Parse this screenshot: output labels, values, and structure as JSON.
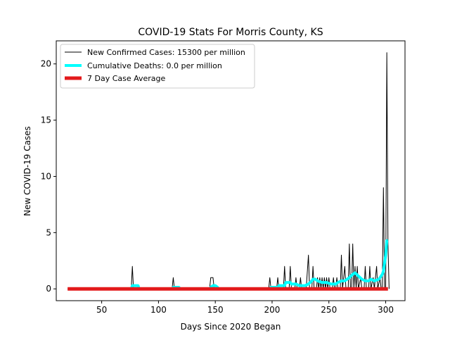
{
  "chart_data": {
    "type": "line",
    "title": "COVID-19 Stats For Morris County, KS",
    "xlabel": "Days Since 2020 Began",
    "ylabel": "New COVID-19 Cases",
    "xlim": [
      10,
      317
    ],
    "ylim": [
      -1.05,
      22.05
    ],
    "xticks": [
      50,
      100,
      150,
      200,
      250,
      300
    ],
    "yticks": [
      0,
      5,
      10,
      15,
      20
    ],
    "grid": false,
    "legend_position": "top-left",
    "series": [
      {
        "name": "New Confirmed Cases: 15300 per million",
        "color": "#000000",
        "style": "thin",
        "points": [
          [
            20,
            0
          ],
          [
            76,
            0
          ],
          [
            77,
            2
          ],
          [
            78,
            0
          ],
          [
            112,
            0
          ],
          [
            113,
            1
          ],
          [
            114,
            0
          ],
          [
            145,
            0
          ],
          [
            146,
            1
          ],
          [
            148,
            1
          ],
          [
            149,
            0
          ],
          [
            197,
            0
          ],
          [
            198,
            1
          ],
          [
            199,
            0
          ],
          [
            204,
            0
          ],
          [
            205,
            1
          ],
          [
            206,
            0
          ],
          [
            210,
            0
          ],
          [
            211,
            2
          ],
          [
            212,
            0
          ],
          [
            215,
            0
          ],
          [
            216,
            2
          ],
          [
            217,
            0
          ],
          [
            220,
            0
          ],
          [
            221,
            1
          ],
          [
            222,
            0
          ],
          [
            224,
            0
          ],
          [
            225,
            1
          ],
          [
            226,
            0
          ],
          [
            230,
            0
          ],
          [
            232,
            3
          ],
          [
            233,
            0
          ],
          [
            235,
            0
          ],
          [
            236,
            2
          ],
          [
            237,
            0
          ],
          [
            239,
            0
          ],
          [
            240,
            1
          ],
          [
            241,
            0
          ],
          [
            242,
            1
          ],
          [
            243,
            0
          ],
          [
            244,
            1
          ],
          [
            245,
            0
          ],
          [
            246,
            1
          ],
          [
            247,
            0
          ],
          [
            248,
            1
          ],
          [
            249,
            0
          ],
          [
            250,
            1
          ],
          [
            251,
            0
          ],
          [
            253,
            0
          ],
          [
            254,
            1
          ],
          [
            255,
            0
          ],
          [
            256,
            0
          ],
          [
            257,
            1
          ],
          [
            258,
            0
          ],
          [
            260,
            0
          ],
          [
            261,
            3
          ],
          [
            262,
            0
          ],
          [
            264,
            2
          ],
          [
            265,
            0
          ],
          [
            267,
            0
          ],
          [
            268,
            4
          ],
          [
            269,
            0
          ],
          [
            270,
            0
          ],
          [
            271,
            4
          ],
          [
            272,
            0
          ],
          [
            273,
            2
          ],
          [
            274,
            0
          ],
          [
            275,
            2
          ],
          [
            276,
            0
          ],
          [
            278,
            1
          ],
          [
            279,
            0
          ],
          [
            281,
            0
          ],
          [
            282,
            2
          ],
          [
            283,
            0
          ],
          [
            285,
            0
          ],
          [
            286,
            2
          ],
          [
            287,
            0
          ],
          [
            289,
            1
          ],
          [
            290,
            0
          ],
          [
            292,
            2
          ],
          [
            293,
            0
          ],
          [
            295,
            1
          ],
          [
            296,
            0
          ],
          [
            297,
            0
          ],
          [
            298,
            9
          ],
          [
            299,
            0
          ],
          [
            300,
            0
          ],
          [
            301,
            21
          ],
          [
            302,
            4
          ],
          [
            303,
            0
          ]
        ]
      },
      {
        "name": "Cumulative Deaths: 0.0 per million",
        "color": "#00ffff",
        "style": "thick",
        "points": [
          [
            76,
            0
          ],
          [
            77,
            0.29
          ],
          [
            82,
            0.29
          ],
          [
            83,
            0
          ],
          [
            112,
            0
          ],
          [
            113,
            0.14
          ],
          [
            118,
            0.14
          ],
          [
            119,
            0
          ],
          [
            145,
            0
          ],
          [
            146,
            0.14
          ],
          [
            148,
            0.29
          ],
          [
            150,
            0.29
          ],
          [
            152,
            0.14
          ],
          [
            153,
            0
          ],
          [
            198,
            0
          ],
          [
            199,
            0.14
          ],
          [
            205,
            0.14
          ],
          [
            206,
            0.29
          ],
          [
            211,
            0.29
          ],
          [
            212,
            0.57
          ],
          [
            216,
            0.57
          ],
          [
            217,
            0.43
          ],
          [
            221,
            0.43
          ],
          [
            224,
            0.29
          ],
          [
            226,
            0.29
          ],
          [
            229,
            0.29
          ],
          [
            232,
            0.43
          ],
          [
            235,
            0.71
          ],
          [
            236,
            0.86
          ],
          [
            238,
            0.86
          ],
          [
            240,
            0.71
          ],
          [
            244,
            0.57
          ],
          [
            248,
            0.57
          ],
          [
            252,
            0.43
          ],
          [
            256,
            0.43
          ],
          [
            258,
            0.57
          ],
          [
            261,
            0.71
          ],
          [
            264,
            0.71
          ],
          [
            268,
            1
          ],
          [
            271,
            1.29
          ],
          [
            273,
            1.43
          ],
          [
            276,
            1.14
          ],
          [
            279,
            0.86
          ],
          [
            282,
            0.71
          ],
          [
            285,
            0.71
          ],
          [
            287,
            0.86
          ],
          [
            290,
            0.71
          ],
          [
            294,
            0.86
          ],
          [
            297,
            1.29
          ],
          [
            298,
            1.57
          ],
          [
            300,
            3
          ],
          [
            301,
            4.29
          ],
          [
            302,
            4.29
          ]
        ]
      },
      {
        "name": "7 Day Case Average",
        "color": "#e31a1c",
        "style": "thicker",
        "points": [
          [
            20,
            0
          ],
          [
            302,
            0
          ]
        ]
      }
    ]
  }
}
